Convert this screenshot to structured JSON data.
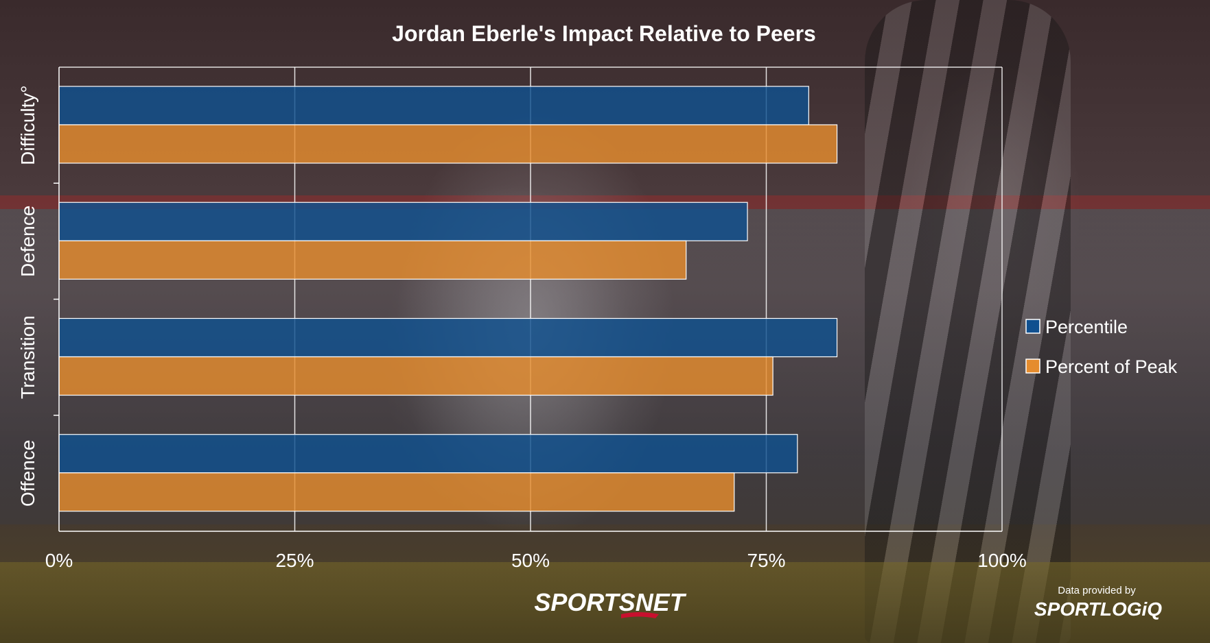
{
  "chart_data": {
    "type": "bar",
    "orientation": "horizontal",
    "title": "Jordan Eberle's Impact Relative to Peers",
    "categories": [
      "Difficulty°",
      "Defence",
      "Transition",
      "Offence"
    ],
    "series": [
      {
        "name": "Percentile",
        "color": "#10508f",
        "values": [
          79.5,
          73,
          82.5,
          78.3
        ]
      },
      {
        "name": "Percent of Peak",
        "color": "#e58c2e",
        "values": [
          82.5,
          66.5,
          75.7,
          71.6
        ]
      }
    ],
    "xlim": [
      0,
      100
    ],
    "x_ticks": [
      "0%",
      "25%",
      "50%",
      "75%",
      "100%"
    ],
    "grid": true,
    "legend_position": "right"
  },
  "footer": {
    "logo_text": "SPORTSNET",
    "credit_text": "Data provided by",
    "credit_logo": "SPORTLOGiQ"
  }
}
